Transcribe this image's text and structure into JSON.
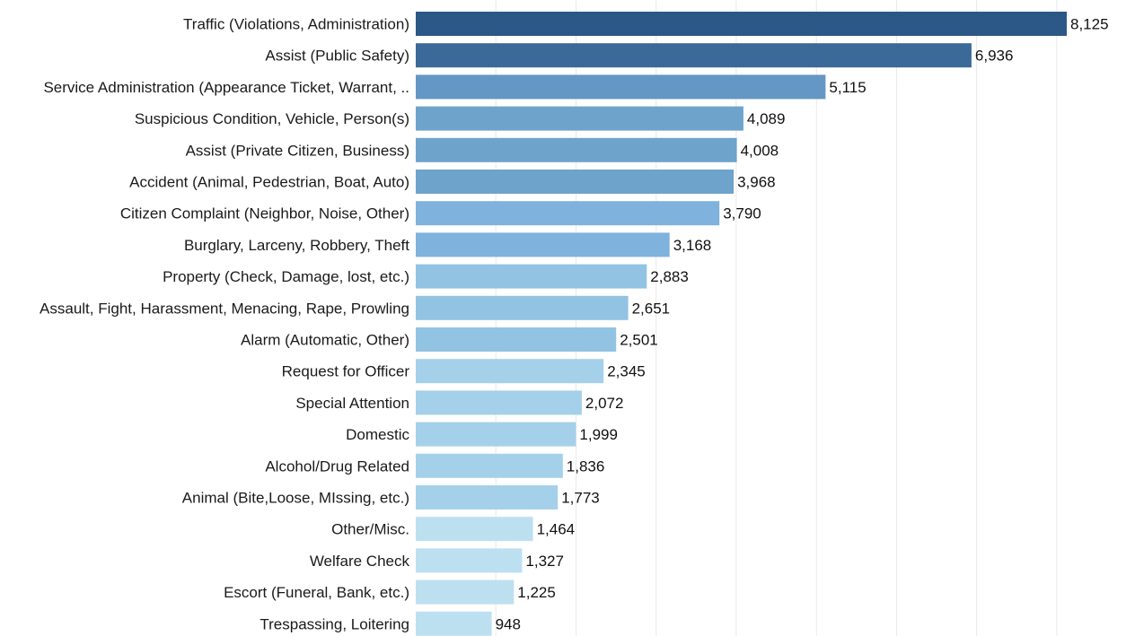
{
  "chart_data": {
    "type": "bar",
    "orientation": "horizontal",
    "title": "",
    "xlabel": "",
    "ylabel": "",
    "xlim": [
      0,
      9000
    ],
    "grid": true,
    "categories": [
      "Traffic (Violations, Administration)",
      "Assist (Public Safety)",
      "Service Administration (Appearance Ticket, Warrant, ..",
      "Suspicious Condition, Vehicle, Person(s)",
      "Assist (Private Citizen, Business)",
      "Accident (Animal, Pedestrian, Boat, Auto)",
      "Citizen Complaint (Neighbor, Noise, Other)",
      "Burglary, Larceny, Robbery, Theft",
      "Property (Check, Damage, lost, etc.)",
      "Assault, Fight, Harassment, Menacing, Rape, Prowling",
      "Alarm (Automatic, Other)",
      "Request for Officer",
      "Special Attention",
      "Domestic",
      "Alcohol/Drug Related",
      "Animal (Bite,Loose, MIssing, etc.)",
      "Other/Misc.",
      "Welfare Check",
      "Escort (Funeral, Bank, etc.)",
      "Trespassing, Loitering"
    ],
    "values": [
      8125,
      6936,
      5115,
      4089,
      4008,
      3968,
      3790,
      3168,
      2883,
      2651,
      2501,
      2345,
      2072,
      1999,
      1836,
      1773,
      1464,
      1327,
      1225,
      948
    ],
    "value_labels": [
      "8,125",
      "6,936",
      "5,115",
      "4,089",
      "4,008",
      "3,968",
      "3,790",
      "3,168",
      "2,883",
      "2,651",
      "2,501",
      "2,345",
      "2,072",
      "1,999",
      "1,836",
      "1,773",
      "1,464",
      "1,327",
      "1,225",
      "948"
    ],
    "colors": [
      "#2b5886",
      "#3b6a99",
      "#6497c4",
      "#6ea3cc",
      "#6ea3cc",
      "#6ea3cc",
      "#7fb2dc",
      "#7fb2dc",
      "#93c3e3",
      "#93c3e3",
      "#93c3e3",
      "#a5d0ea",
      "#a5d0ea",
      "#a5d0ea",
      "#a5d0ea",
      "#a5d0ea",
      "#bde0f1",
      "#bde0f1",
      "#bde0f1",
      "#bde0f1"
    ]
  }
}
